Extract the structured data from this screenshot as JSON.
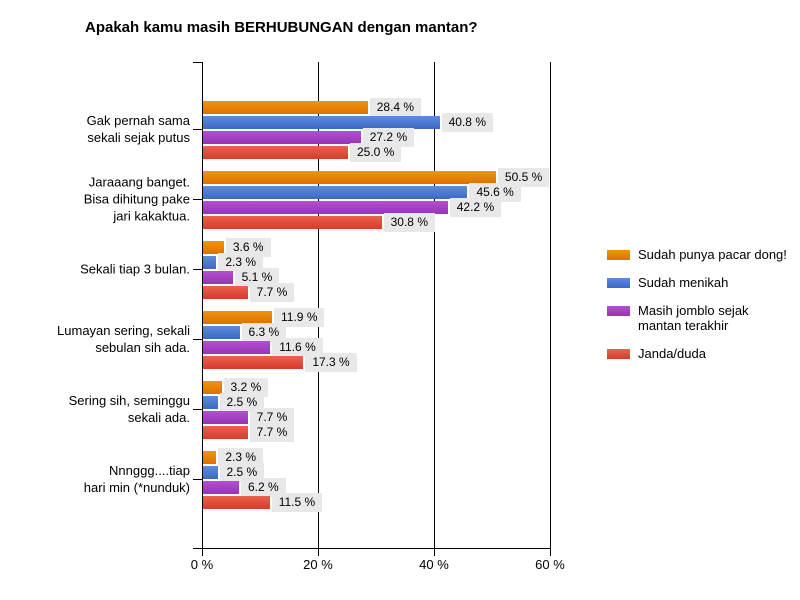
{
  "chart_data": {
    "type": "bar",
    "orientation": "horizontal",
    "title": "Apakah kamu masih BERHUBUNGAN dengan mantan?",
    "categories": [
      "Gak pernah sama\nsekali sejak putus",
      "Jaraaang banget.\nBisa dihitung pake\njari kakaktua.",
      "Sekali tiap 3 bulan.",
      "Lumayan sering, sekali\nsebulan sih ada.",
      "Sering sih, seminggu\nsekali ada.",
      "Nnnggg....tiap\nhari min (*nunduk)"
    ],
    "series": [
      {
        "name": "Sudah punya pacar dong!",
        "color_top": "#F1940B",
        "color_bottom": "#DC7000",
        "values": [
          28.4,
          50.5,
          3.6,
          11.9,
          3.2,
          2.3
        ]
      },
      {
        "name": "Sudah menikah",
        "color_top": "#5C8BDE",
        "color_bottom": "#3C68C4",
        "values": [
          40.8,
          45.6,
          2.3,
          6.3,
          2.5,
          2.5
        ]
      },
      {
        "name": "Masih jomblo sejak\nmantan terakhir",
        "color_top": "#B450CF",
        "color_bottom": "#9634B6",
        "values": [
          27.2,
          42.2,
          5.1,
          11.6,
          7.7,
          6.2
        ]
      },
      {
        "name": "Janda/duda",
        "color_top": "#EC604F",
        "color_bottom": "#D53C2A",
        "values": [
          25.0,
          30.8,
          7.7,
          17.3,
          7.7,
          11.5
        ]
      }
    ],
    "xlim": [
      0,
      60
    ],
    "x_ticks": [
      {
        "value": 0,
        "label": "0 %"
      },
      {
        "value": 20,
        "label": "20 %"
      },
      {
        "value": 40,
        "label": "40 %"
      },
      {
        "value": 60,
        "label": "60 %"
      }
    ],
    "value_label_suffix": " %",
    "grid": "vertical",
    "legend_position": "right",
    "value_label_bg": "#E8E8E8",
    "axis_color": "#000000"
  }
}
